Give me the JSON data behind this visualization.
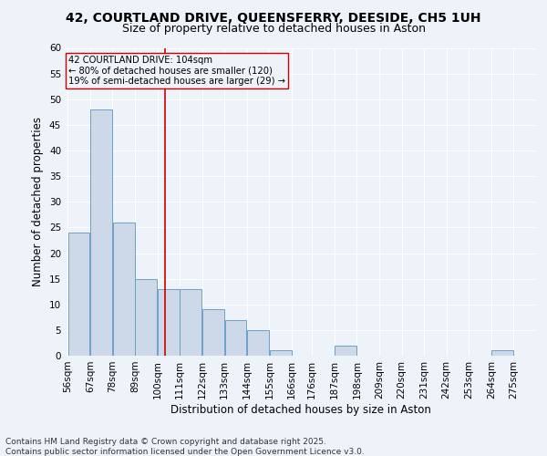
{
  "title_line1": "42, COURTLAND DRIVE, QUEENSFERRY, DEESIDE, CH5 1UH",
  "title_line2": "Size of property relative to detached houses in Aston",
  "xlabel": "Distribution of detached houses by size in Aston",
  "ylabel": "Number of detached properties",
  "bar_color": "#cdd9e8",
  "bar_edge_color": "#6fa0c8",
  "vline_color": "#cc0000",
  "vline_x": 104,
  "categories": [
    "56sqm",
    "67sqm",
    "78sqm",
    "89sqm",
    "100sqm",
    "111sqm",
    "122sqm",
    "133sqm",
    "144sqm",
    "155sqm",
    "166sqm",
    "176sqm",
    "187sqm",
    "198sqm",
    "209sqm",
    "220sqm",
    "231sqm",
    "242sqm",
    "253sqm",
    "264sqm",
    "275sqm"
  ],
  "bin_edges": [
    56,
    67,
    78,
    89,
    100,
    111,
    122,
    133,
    144,
    155,
    166,
    176,
    187,
    198,
    209,
    220,
    231,
    242,
    253,
    264,
    275,
    286
  ],
  "values": [
    24,
    48,
    26,
    15,
    13,
    13,
    9,
    7,
    5,
    1,
    0,
    0,
    2,
    0,
    0,
    0,
    0,
    0,
    0,
    1,
    0
  ],
  "ylim": [
    0,
    60
  ],
  "yticks": [
    0,
    5,
    10,
    15,
    20,
    25,
    30,
    35,
    40,
    45,
    50,
    55,
    60
  ],
  "annotation_text": "42 COURTLAND DRIVE: 104sqm\n← 80% of detached houses are smaller (120)\n19% of semi-detached houses are larger (29) →",
  "footer_line1": "Contains HM Land Registry data © Crown copyright and database right 2025.",
  "footer_line2": "Contains public sector information licensed under the Open Government Licence v3.0.",
  "bg_color": "#eef2f9",
  "grid_color": "#ffffff",
  "title_fontsize": 10,
  "subtitle_fontsize": 9,
  "axis_label_fontsize": 8.5,
  "tick_fontsize": 7.5,
  "footer_fontsize": 6.5
}
